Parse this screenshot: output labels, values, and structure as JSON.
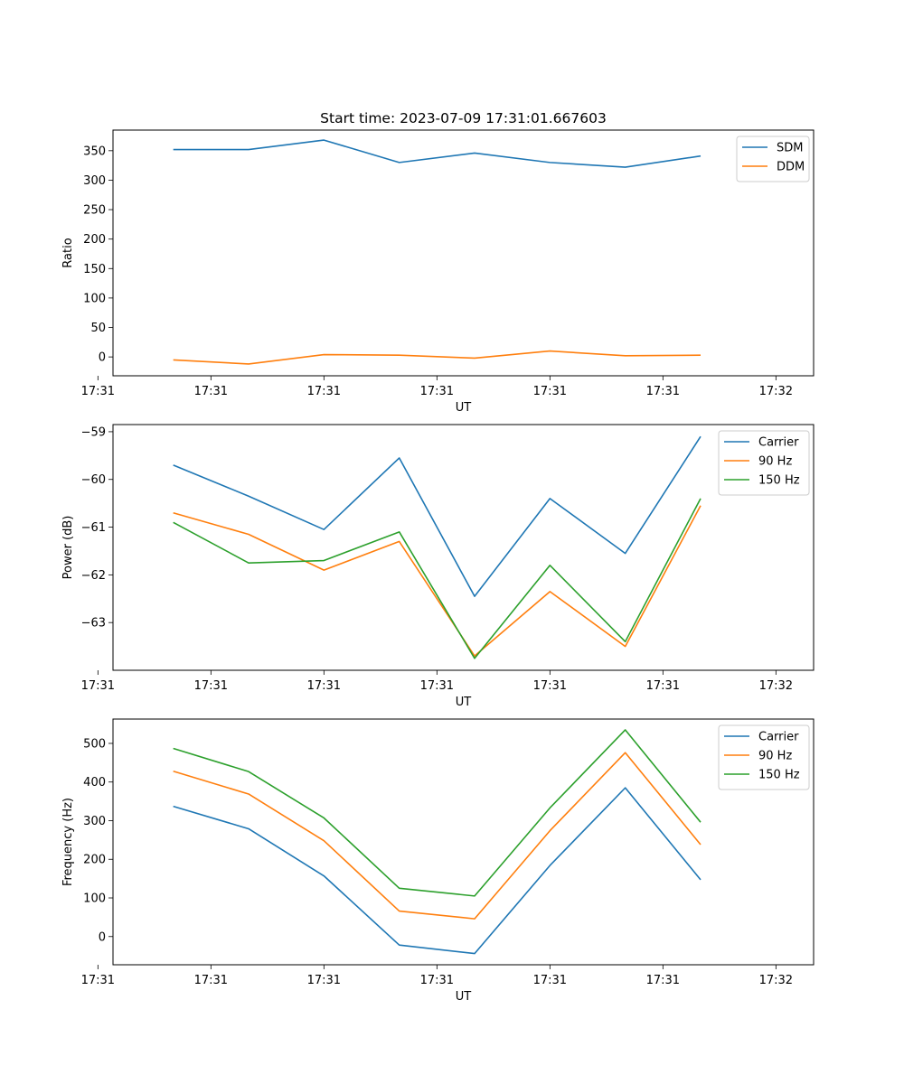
{
  "title": "Start time: 2023-07-09 17:31:01.667603",
  "colors": {
    "blue": "#1f77b4",
    "orange": "#ff7f0e",
    "green": "#2ca02c"
  },
  "chart_data": [
    {
      "type": "line",
      "xlabel": "UT",
      "ylabel": "Ratio",
      "x": [
        1,
        2,
        3,
        4,
        5,
        6,
        7,
        8
      ],
      "xlim": [
        0.2,
        9.5
      ],
      "x_ticks": [
        0,
        1.5,
        3.0,
        4.5,
        6.0,
        7.5,
        9.0
      ],
      "x_tick_labels": [
        "17:31",
        "17:31",
        "17:31",
        "17:31",
        "17:31",
        "17:31",
        "17:32"
      ],
      "ylim": [
        -32,
        385
      ],
      "y_ticks": [
        0,
        50,
        100,
        150,
        200,
        250,
        300,
        350
      ],
      "y_tick_labels": [
        "0",
        "50",
        "100",
        "150",
        "200",
        "250",
        "300",
        "350"
      ],
      "legend_position": "top-right",
      "series": [
        {
          "name": "SDM",
          "color": "#1f77b4",
          "values": [
            352,
            352,
            368,
            330,
            346,
            330,
            322,
            341
          ]
        },
        {
          "name": "DDM",
          "color": "#ff7f0e",
          "values": [
            -5,
            -12,
            4,
            3,
            -2,
            10,
            2,
            3
          ]
        }
      ]
    },
    {
      "type": "line",
      "xlabel": "UT",
      "ylabel": "Power (dB)",
      "x": [
        1,
        2,
        3,
        4,
        5,
        6,
        7,
        8
      ],
      "xlim": [
        0.2,
        9.5
      ],
      "x_ticks": [
        0,
        1.5,
        3.0,
        4.5,
        6.0,
        7.5,
        9.0
      ],
      "x_tick_labels": [
        "17:31",
        "17:31",
        "17:31",
        "17:31",
        "17:31",
        "17:31",
        "17:32"
      ],
      "ylim": [
        -64.0,
        -58.85
      ],
      "y_ticks": [
        -63,
        -62,
        -61,
        -60,
        -59
      ],
      "y_tick_labels": [
        "−63",
        "−62",
        "−61",
        "−60",
        "−59"
      ],
      "legend_position": "top-right",
      "series": [
        {
          "name": "Carrier",
          "color": "#1f77b4",
          "values": [
            -59.7,
            -60.35,
            -61.05,
            -59.55,
            -62.45,
            -60.4,
            -61.55,
            -59.1
          ]
        },
        {
          "name": "90 Hz",
          "color": "#ff7f0e",
          "values": [
            -60.7,
            -61.15,
            -61.9,
            -61.3,
            -63.7,
            -62.35,
            -63.5,
            -60.55
          ]
        },
        {
          "name": "150 Hz",
          "color": "#2ca02c",
          "values": [
            -60.9,
            -61.75,
            -61.7,
            -61.1,
            -63.75,
            -61.8,
            -63.4,
            -60.4
          ]
        }
      ]
    },
    {
      "type": "line",
      "xlabel": "UT",
      "ylabel": "Frequency (Hz)",
      "x": [
        1,
        2,
        3,
        4,
        5,
        6,
        7,
        8
      ],
      "xlim": [
        0.2,
        9.5
      ],
      "x_ticks": [
        0,
        1.5,
        3.0,
        4.5,
        6.0,
        7.5,
        9.0
      ],
      "x_tick_labels": [
        "17:31",
        "17:31",
        "17:31",
        "17:31",
        "17:31",
        "17:31",
        "17:32"
      ],
      "ylim": [
        -73,
        563
      ],
      "y_ticks": [
        0,
        100,
        200,
        300,
        400,
        500
      ],
      "y_tick_labels": [
        "0",
        "100",
        "200",
        "300",
        "400",
        "500"
      ],
      "legend_position": "top-right",
      "series": [
        {
          "name": "Carrier",
          "color": "#1f77b4",
          "values": [
            337,
            279,
            157,
            -22,
            -44,
            184,
            385,
            147
          ]
        },
        {
          "name": "90 Hz",
          "color": "#ff7f0e",
          "values": [
            428,
            369,
            248,
            66,
            46,
            274,
            476,
            238
          ]
        },
        {
          "name": "150 Hz",
          "color": "#2ca02c",
          "values": [
            487,
            427,
            307,
            125,
            105,
            333,
            535,
            296
          ]
        }
      ]
    }
  ]
}
